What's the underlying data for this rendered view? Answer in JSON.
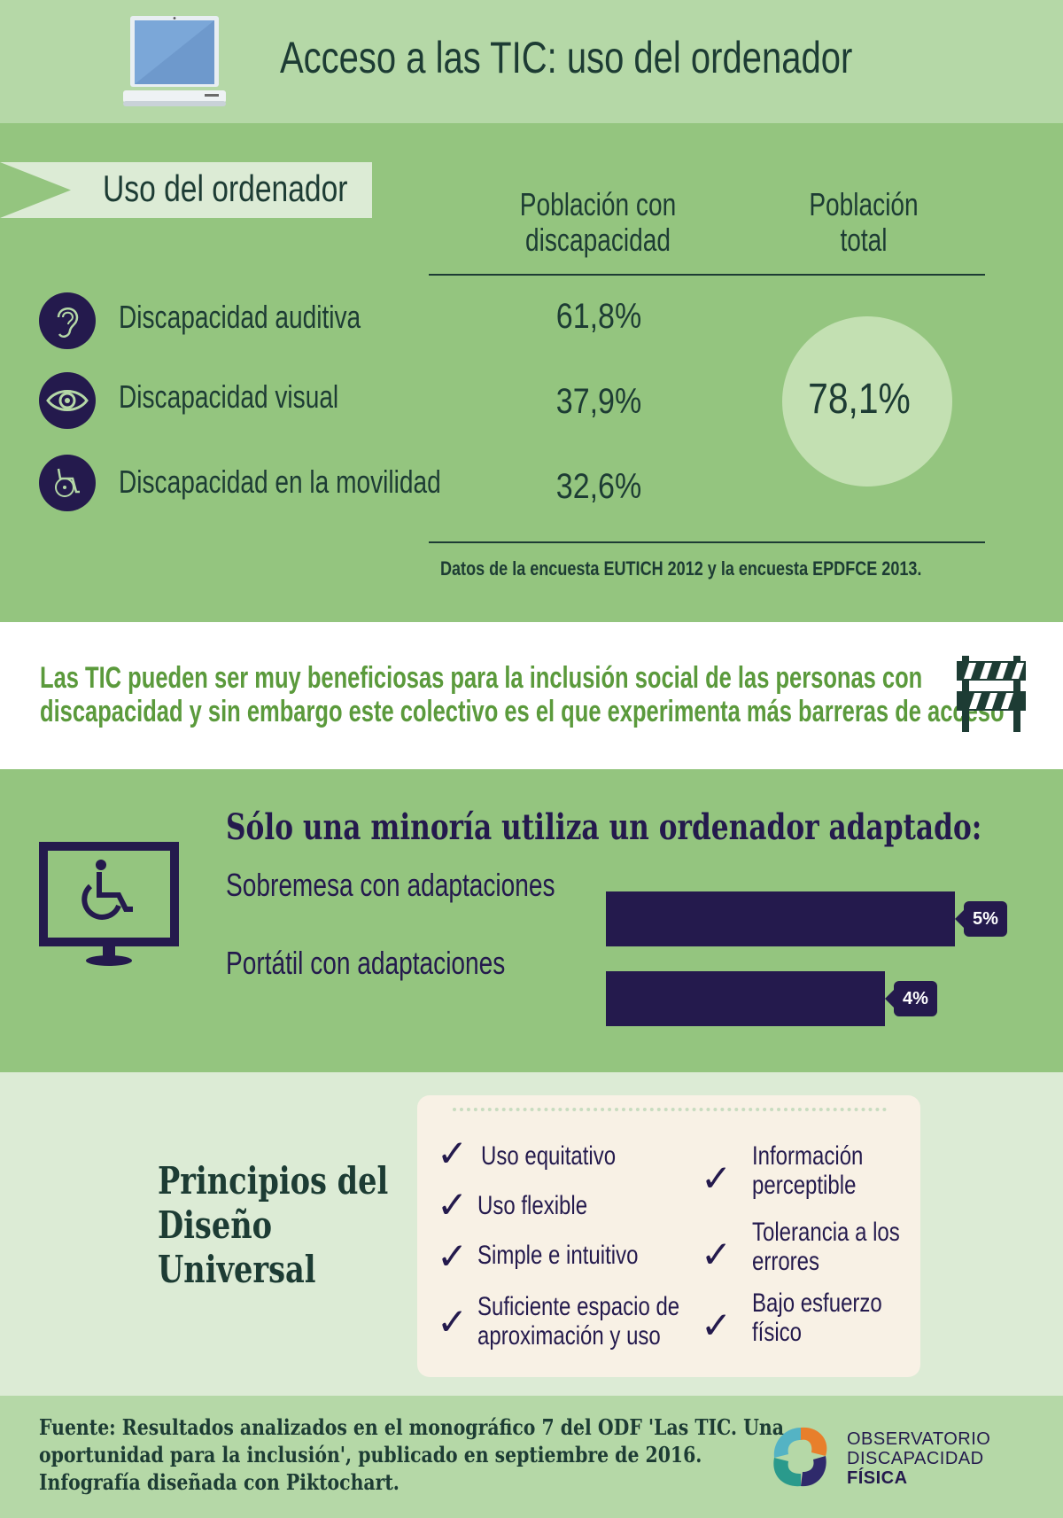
{
  "header": {
    "title": "Acceso a las TIC: uso del ordenador",
    "icon": "laptop-icon"
  },
  "usage": {
    "banner_label": "Uso del ordenador",
    "col_disability": [
      "Población con",
      "discapacidad"
    ],
    "col_total": [
      "Población",
      "total"
    ],
    "rows": [
      {
        "label": "Discapacidad auditiva",
        "value": "61,8%",
        "icon": "ear-icon"
      },
      {
        "label": "Discapacidad visual",
        "value": "37,9%",
        "icon": "eye-icon"
      },
      {
        "label": "Discapacidad en la movilidad",
        "value": "32,6%",
        "icon": "wheelchair-icon"
      }
    ],
    "total_value": "78,1%",
    "source_note": "Datos de la encuesta EUTICH 2012 y la encuesta EPDFCE 2013."
  },
  "quote": {
    "line1": "Las TIC pueden ser muy beneficiosas para la inclusión social de las personas con",
    "line2": "discapacidad y sin embargo este colectivo es el que experimenta más barreras de acceso",
    "icon": "barrier-icon"
  },
  "adapted": {
    "title": "Sólo una minoría utiliza un ordenador adaptado:",
    "icon": "accessible-monitor-icon",
    "bars": [
      {
        "label": "Sobremesa con adaptaciones",
        "value": 5,
        "value_label": "5%"
      },
      {
        "label": "Portátil con adaptaciones",
        "value": 4,
        "value_label": "4%"
      }
    ]
  },
  "design": {
    "title": [
      "Principios del",
      "Diseño",
      "Universal"
    ],
    "check_glyph": "✓",
    "principles_left": [
      [
        "Uso equitativo"
      ],
      [
        "Uso flexible"
      ],
      [
        "Simple e intuitivo"
      ],
      [
        "Suficiente espacio de",
        "aproximación y uso"
      ]
    ],
    "principles_right": [
      [
        "Información",
        "perceptible"
      ],
      [
        "Tolerancia a los",
        "errores"
      ],
      [
        "Bajo esfuerzo",
        "físico"
      ]
    ]
  },
  "footer": {
    "source": [
      "Fuente: Resultados analizados en el monográfico 7 del ODF 'Las TIC. Una",
      "oportunidad para la inclusión', publicado en septiembre de 2016.",
      "Infografía diseñada con Piktochart."
    ],
    "logo_lines": [
      "OBSERVATORIO",
      "DISCAPACIDAD",
      "FÍSICA"
    ]
  },
  "colors": {
    "header_bg": "#b5d8a7",
    "section_green": "#94c57f",
    "navy": "#241a4d",
    "dark_green_text": "#1d3c34",
    "quote_text": "#5b9a3c",
    "light_panel": "#dcebd5",
    "card_bg": "#f8f1e5"
  }
}
